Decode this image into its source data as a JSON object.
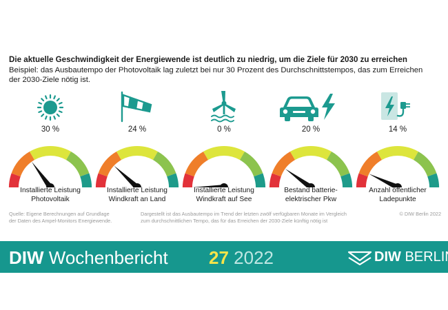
{
  "title": "Die aktuelle Geschwindigkeit der Energiewende ist deutlich zu niedrig, um die Ziele für 2030 zu erreichen",
  "subtitle": "Beispiel: das Ausbautempo der Photovoltaik lag zuletzt bei nur 30 Prozent des Durchschnittstempos, das zum Erreichen der 2030-Ziele nötig ist.",
  "colors": {
    "red": "#e2323a",
    "orange": "#ef7e2a",
    "yellow": "#dde53c",
    "lightgreen": "#8cc34e",
    "teal": "#1e9b8a",
    "banner": "#16978e",
    "icon": "#1c9a8f"
  },
  "gauges": [
    {
      "icon": "sun-icon",
      "percent_label": "30 %",
      "value_percent": 30,
      "label_line1": "Installierte Leistung",
      "label_line2": "Photovoltaik"
    },
    {
      "icon": "windsock-icon",
      "percent_label": "24 %",
      "value_percent": 24,
      "label_line1": "Installierte Leistung",
      "label_line2": "Windkraft an Land"
    },
    {
      "icon": "offshore-wind-icon",
      "percent_label": "0 %",
      "value_percent": 0,
      "label_line1": "Installierte Leistung",
      "label_line2": "Windkraft auf See"
    },
    {
      "icon": "electric-car-icon",
      "percent_label": "20 %",
      "value_percent": 20,
      "label_line1": "Bestand batterie-",
      "label_line2": "elektrischer Pkw"
    },
    {
      "icon": "charging-station-icon",
      "percent_label": "14 %",
      "value_percent": 14,
      "label_line1": "Anzahl öffentlicher",
      "label_line2": "Ladepunkte"
    }
  ],
  "source_line1": "Quelle: Eigene Berechnungen auf Grundlage",
  "source_line2": "der Daten des Ampel-Monitors Energiewende.",
  "note_line1": "Dargestellt ist das Ausbautempo im Trend der letzten zwölf verfügbaren Monate im Vergleich",
  "note_line2": "zum durchschnittlichen Tempo, das für das Erreichen der 2030-Ziele künftig nötig ist",
  "copyright": "© DIW Berlin 2022",
  "banner": {
    "brand_bold": "DIW",
    "brand_rest": " Wochenbericht",
    "issue_number": "27",
    "issue_year": " 2022",
    "logo_bold": "DIW",
    "logo_rest": " BERLIN"
  }
}
